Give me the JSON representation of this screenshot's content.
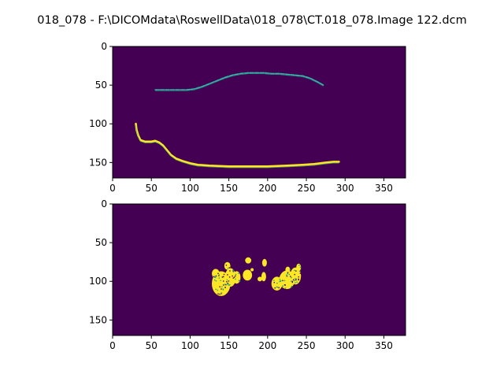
{
  "figure": {
    "suptitle": "018_078 - F:\\DICOMdata\\RoswellData\\018_078\\CT.018_078.Image 122.dcm"
  },
  "colors": {
    "background_purple": "#440154",
    "teal": "#21a38a",
    "cyan": "#35b7a9",
    "yellow": "#fde725",
    "green": "#5cc863"
  },
  "chart_data": [
    {
      "type": "heatmap",
      "colormap": "viridis",
      "image_shape": [
        170,
        378
      ],
      "xlim": [
        0,
        378
      ],
      "ylim": [
        170,
        0
      ],
      "x_ticks": [
        0,
        50,
        100,
        150,
        200,
        250,
        300,
        350
      ],
      "y_ticks": [
        0,
        50,
        100,
        150
      ],
      "structures": [
        {
          "name": "upper-curve",
          "color": "cyan",
          "points": [
            [
              55,
              56
            ],
            [
              65,
              56
            ],
            [
              80,
              56
            ],
            [
              95,
              56
            ],
            [
              105,
              55
            ],
            [
              115,
              52
            ],
            [
              125,
              48
            ],
            [
              135,
              44
            ],
            [
              145,
              40
            ],
            [
              155,
              37
            ],
            [
              165,
              35
            ],
            [
              175,
              34
            ],
            [
              185,
              34
            ],
            [
              195,
              34
            ],
            [
              205,
              35
            ],
            [
              215,
              35
            ],
            [
              225,
              36
            ],
            [
              235,
              37
            ],
            [
              245,
              38
            ],
            [
              255,
              41
            ],
            [
              265,
              46
            ],
            [
              272,
              50
            ]
          ]
        },
        {
          "name": "lower-curve",
          "color": "yellow",
          "points": [
            [
              30,
              100
            ],
            [
              31,
              108
            ],
            [
              33,
              115
            ],
            [
              36,
              121
            ],
            [
              42,
              123
            ],
            [
              50,
              123
            ],
            [
              55,
              122
            ],
            [
              60,
              124
            ],
            [
              65,
              128
            ],
            [
              70,
              134
            ],
            [
              75,
              140
            ],
            [
              82,
              145
            ],
            [
              90,
              148
            ],
            [
              100,
              151
            ],
            [
              110,
              153
            ],
            [
              125,
              154
            ],
            [
              150,
              155
            ],
            [
              175,
              155
            ],
            [
              200,
              155
            ],
            [
              225,
              154
            ],
            [
              245,
              153
            ],
            [
              260,
              152
            ],
            [
              275,
              150
            ],
            [
              285,
              149
            ],
            [
              292,
              149
            ]
          ]
        }
      ]
    },
    {
      "type": "heatmap",
      "colormap": "viridis",
      "image_shape": [
        170,
        378
      ],
      "xlim": [
        0,
        378
      ],
      "ylim": [
        170,
        0
      ],
      "x_ticks": [
        0,
        50,
        100,
        150,
        200,
        250,
        300,
        350
      ],
      "y_ticks": [
        0,
        50,
        100,
        150
      ],
      "structures": [
        {
          "name": "left-lung-region",
          "color": "yellow",
          "blobs": [
            [
              140,
              103,
              12,
              16
            ],
            [
              152,
              95,
              7,
              12
            ],
            [
              148,
              80,
              4,
              5
            ],
            [
              160,
              95,
              5,
              8
            ],
            [
              133,
              90,
              5,
              6
            ]
          ]
        },
        {
          "name": "right-lung-region",
          "color": "yellow",
          "blobs": [
            [
              236,
              93,
              7,
              11
            ],
            [
              225,
              98,
              10,
              12
            ],
            [
              212,
              103,
              7,
              9
            ],
            [
              240,
              82,
              3,
              5
            ],
            [
              226,
              85,
              3,
              4
            ]
          ]
        },
        {
          "name": "central-structures",
          "color": "yellow",
          "blobs": [
            [
              175,
              73,
              4,
              4
            ],
            [
              196,
              76,
              3,
              5
            ],
            [
              174,
              92,
              6,
              7
            ],
            [
              195,
              94,
              3,
              6
            ],
            [
              190,
              97,
              3,
              3
            ],
            [
              180,
              85,
              2,
              2
            ]
          ]
        }
      ]
    }
  ]
}
